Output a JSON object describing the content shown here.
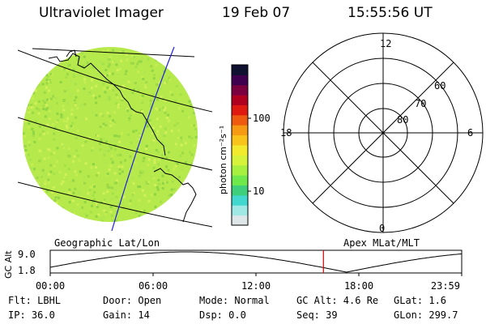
{
  "header": {
    "instrument": "Ultraviolet Imager",
    "date": "19 Feb 07",
    "time": "15:55:56 UT"
  },
  "colorbar": {
    "unit_label": "photon cm⁻²s⁻¹",
    "ticks": [
      "100",
      "10"
    ],
    "colors": [
      "#dfe6e8",
      "#9fe8e4",
      "#42d8d0",
      "#3fcf7c",
      "#6ee84a",
      "#a8f040",
      "#d6f23a",
      "#f2ea2c",
      "#f8c41c",
      "#f59a12",
      "#ee5a10",
      "#e01a10",
      "#b00020",
      "#7a0040",
      "#400050",
      "#101030"
    ]
  },
  "image_panel": {
    "label": "Geographic Lat/Lon",
    "disk_color": "#b6ea4c"
  },
  "polar_panel": {
    "label": "Apex MLat/MLT",
    "mlt_labels": {
      "top": "12",
      "bottom": "0",
      "left": "18",
      "right": "6"
    },
    "lat_labels": [
      "60",
      "70",
      "80"
    ]
  },
  "orbit_plot": {
    "ylabel": "GC Alt",
    "ymax_label": "9.0",
    "ymin_label": "1.8",
    "x_ticks": [
      "00:00",
      "06:00",
      "12:00",
      "18:00",
      "23:59"
    ],
    "current_time_fraction": 0.664,
    "current_marker_color": "#e00000"
  },
  "footer": {
    "flt": "Flt: LBHL",
    "door": "Door: Open",
    "mode": "Mode: Normal",
    "gcalt": "GC Alt: 4.6 Re",
    "glat": "GLat:  1.6",
    "ip": "IP: 36.0",
    "gain": "Gain: 14",
    "dsp": "Dsp:    0.0",
    "seq": "Seq: 39",
    "glon": "GLon: 299.7"
  }
}
